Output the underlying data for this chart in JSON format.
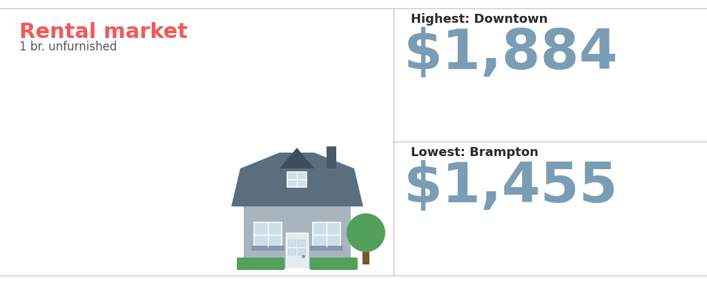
{
  "title": "Rental market",
  "subtitle": "1 br. unfurnished",
  "title_color": "#f05a5a",
  "subtitle_color": "#555555",
  "highest_label": "Highest: Downtown",
  "highest_value": "$1,884",
  "lowest_label": "Lowest: Brampton",
  "lowest_value": "$1,455",
  "value_color": "#7a9db5",
  "label_color": "#2a2a2a",
  "background_color": "#ffffff",
  "divider_color": "#c8c8c8",
  "house_body_color": "#a8b5bf",
  "house_roof_color": "#5a6e7d",
  "house_roof_dark": "#3d4f5c",
  "house_window_color": "#cde0ea",
  "house_door_color": "#e5ecf0",
  "house_chimney_color": "#4a5a65",
  "house_sill_color": "#8898a8",
  "bush_color": "#52a05a",
  "tree_foliage_color": "#52a05a",
  "tree_trunk_color": "#7a5530",
  "title_fontsize": 22,
  "subtitle_fontsize": 12,
  "label_fontsize": 13,
  "value_fontsize": 58
}
